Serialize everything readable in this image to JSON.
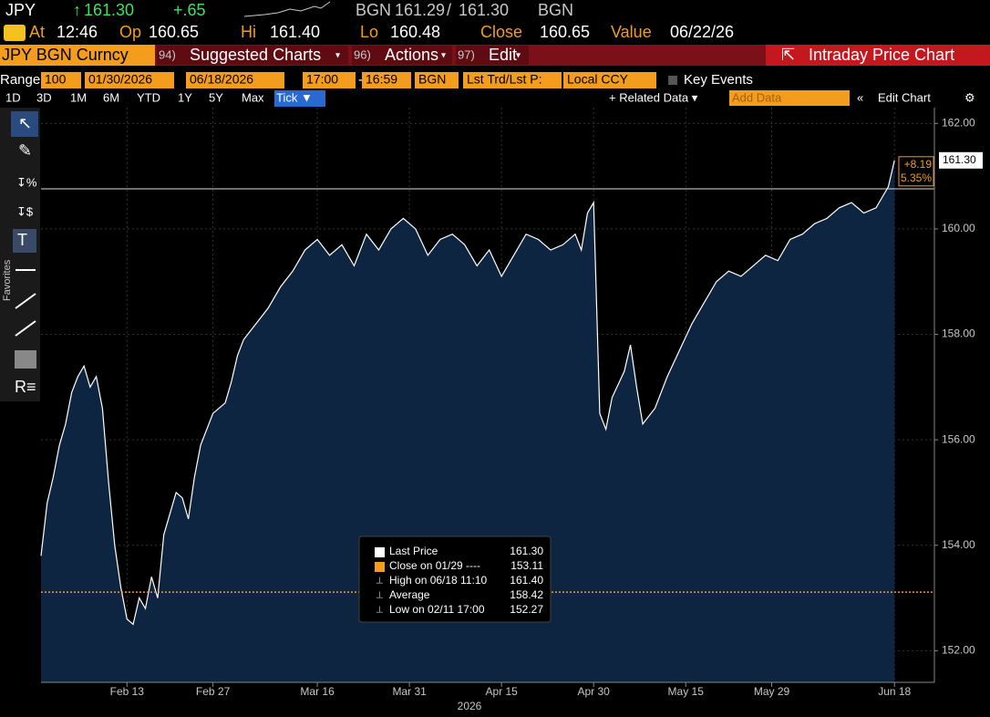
{
  "header": {
    "ticker": "JPY",
    "last": "161.30",
    "change": "+.65",
    "bid_src": "BGN",
    "bid": "161.29",
    "ask": "161.30",
    "ask_src": "BGN",
    "at_label": "At",
    "at": "12:46",
    "op_label": "Op",
    "op": "160.65",
    "hi_label": "Hi",
    "hi": "161.40",
    "lo_label": "Lo",
    "lo": "160.48",
    "close_label": "Close",
    "close": "160.65",
    "value_label": "Value",
    "value_date": "06/22/26"
  },
  "menubar": {
    "security": "JPY BGN Curncy",
    "menus": [
      {
        "num": "94)",
        "label": "Suggested Charts"
      },
      {
        "num": "96)",
        "label": "Actions"
      },
      {
        "num": "97)",
        "label": "Edit"
      }
    ],
    "title": "Intraday Price Chart"
  },
  "rangebar": {
    "range_label": "Range",
    "count": "100",
    "start": "01/30/2026",
    "end": "06/18/2026",
    "start_time": "17:00",
    "dash": "-",
    "end_time": "16:59",
    "source": "BGN",
    "field": "Lst Trd/Lst P:",
    "currency": "Local CCY",
    "events": "Key Events"
  },
  "periods": [
    "1D",
    "3D",
    "1M",
    "6M",
    "YTD",
    "1Y",
    "5Y",
    "Max",
    "Tick ▼"
  ],
  "tools": {
    "related": "+ Related Data ▾",
    "add": "Add Data",
    "edit": "Edit Chart",
    "favorites": "Favorites"
  },
  "chart_tools": [
    "Track",
    "Annotate",
    "News",
    "Zoom"
  ],
  "legend": [
    {
      "label": "Last Price",
      "value": "161.30"
    },
    {
      "label": "Close on 01/29 ----",
      "value": "153.11"
    },
    {
      "label": "High on 06/18 11:10",
      "value": "161.40"
    },
    {
      "label": "Average",
      "value": "158.42"
    },
    {
      "label": "Low on 02/11 17:00",
      "value": "152.27"
    }
  ],
  "chart_data": {
    "type": "area",
    "color": "#0e2542",
    "line_color": "#ffffff",
    "x": [
      0,
      1,
      2,
      3,
      4,
      5,
      6,
      7,
      8,
      9,
      10,
      11,
      12,
      13,
      14,
      15,
      16,
      17,
      18,
      19,
      20,
      21,
      22,
      23,
      24,
      25,
      26,
      27,
      28,
      30,
      31,
      32,
      33,
      35,
      37,
      39,
      41,
      43,
      45,
      47,
      49,
      51,
      53,
      55,
      57,
      59,
      61,
      63,
      65,
      67,
      69,
      71,
      73,
      75,
      77,
      79,
      81,
      83,
      85,
      87,
      88,
      89,
      90,
      91,
      92,
      93,
      95,
      96,
      97,
      98,
      100,
      102,
      104,
      106,
      108,
      110,
      112,
      114,
      116,
      118,
      120,
      122,
      124,
      126,
      128,
      130,
      132,
      134,
      136,
      137,
      138,
      139
    ],
    "values": [
      153.8,
      154.8,
      155.3,
      155.9,
      156.3,
      156.9,
      157.2,
      157.4,
      157.0,
      157.2,
      156.6,
      155.2,
      154.0,
      153.2,
      152.6,
      152.5,
      153.0,
      152.8,
      153.4,
      153.0,
      154.2,
      154.6,
      155.0,
      154.9,
      154.5,
      155.3,
      155.9,
      156.2,
      156.5,
      156.7,
      157.1,
      157.6,
      157.9,
      158.2,
      158.5,
      158.9,
      159.2,
      159.6,
      159.8,
      159.5,
      159.7,
      159.3,
      159.9,
      159.6,
      160.0,
      160.2,
      160.0,
      159.5,
      159.8,
      159.9,
      159.7,
      159.3,
      159.6,
      159.1,
      159.5,
      159.9,
      159.8,
      159.6,
      159.7,
      159.9,
      159.6,
      160.3,
      160.5,
      156.5,
      156.2,
      156.8,
      157.3,
      157.8,
      157.0,
      156.3,
      156.6,
      157.2,
      157.7,
      158.2,
      158.6,
      159.0,
      159.2,
      159.1,
      159.3,
      159.5,
      159.4,
      159.8,
      159.9,
      160.1,
      160.2,
      160.4,
      160.5,
      160.3,
      160.4,
      160.6,
      160.8,
      161.3
    ],
    "xlim": [
      0,
      145.5
    ],
    "xticks": [
      {
        "value": 14,
        "label": "Feb 13"
      },
      {
        "value": 28,
        "label": "Feb 27"
      },
      {
        "value": 45,
        "label": "Mar 16"
      },
      {
        "value": 60,
        "label": "Mar 31"
      },
      {
        "value": 75,
        "label": "Apr 15"
      },
      {
        "value": 90,
        "label": "Apr 30"
      },
      {
        "value": 105,
        "label": "May 15"
      },
      {
        "value": 119,
        "label": "May 29"
      },
      {
        "value": 139,
        "label": "Jun 18"
      }
    ],
    "year": "2026",
    "ylim": [
      151.4,
      162.3
    ],
    "yticks": [
      {
        "value": 152,
        "label": "152.00"
      },
      {
        "value": 154,
        "label": "154.00"
      },
      {
        "value": 156,
        "label": "156.00"
      },
      {
        "value": 158,
        "label": "158.00"
      },
      {
        "value": 160,
        "label": "160.00"
      },
      {
        "value": 162,
        "label": "162.00"
      }
    ],
    "grid": true,
    "close_line": 153.11,
    "ref_line": 160.76,
    "last_tag": "161.30",
    "change_tag": "+8.19",
    "pct_tag": "5.35%"
  }
}
